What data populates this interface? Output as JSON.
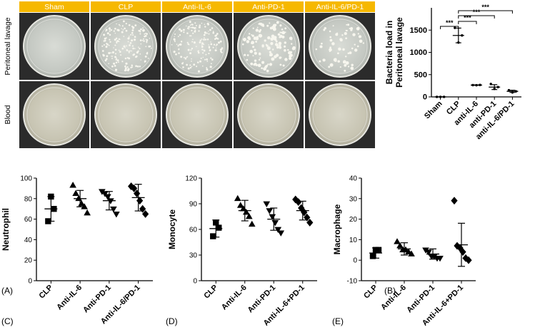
{
  "panel_labels": [
    "(A)",
    "(B)",
    "(C)",
    "(D)",
    "(E)"
  ],
  "plates": {
    "groups": [
      "Sham",
      "CLP",
      "Anti-IL-6",
      "Anti-PD-1",
      "Anti-IL-6/PD-1"
    ],
    "rows": [
      "Peritoneal lavage",
      "Blood"
    ],
    "header_color": "#F6B800",
    "colony_density": [
      0,
      1.0,
      0.9,
      0.7,
      0.35
    ]
  },
  "chart_data": [
    {
      "panel": "(B)",
      "type": "scatter",
      "ylabel": "Bacteria load in\nPeritoneal lavage",
      "categories": [
        "Sham",
        "CLP",
        "anti-IL-6",
        "anti-PD-1",
        "anti-IL-6/PD-1"
      ],
      "ylim": [
        0,
        2000
      ],
      "yticks": [
        0,
        500,
        1000,
        1500
      ],
      "points": [
        [
          0,
          0,
          0
        ],
        [
          1550,
          1220,
          1380
        ],
        [
          265,
          262,
          268
        ],
        [
          290,
          180,
          220
        ],
        [
          150,
          100,
          125
        ]
      ],
      "mean": [
        0,
        1380,
        265,
        220,
        125
      ],
      "sd": [
        0,
        165,
        5,
        55,
        25
      ],
      "marker": "point",
      "significance": [
        {
          "from": "Sham",
          "to": "CLP",
          "label": "***"
        },
        {
          "from": "CLP",
          "to": "anti-IL-6",
          "label": "***"
        },
        {
          "from": "CLP",
          "to": "anti-PD-1",
          "label": "***"
        },
        {
          "from": "CLP",
          "to": "anti-IL-6/PD-1",
          "label": "***"
        }
      ]
    },
    {
      "panel": "(C)",
      "type": "scatter",
      "ylabel": "Neutrophil",
      "categories": [
        "CLP",
        "Anti-IL-6",
        "Anti-PD-1",
        "Anti-IL-6/PD-1"
      ],
      "markers": [
        "square",
        "triangle-up",
        "triangle-down",
        "diamond"
      ],
      "ylim": [
        0,
        100
      ],
      "yticks": [
        0,
        20,
        40,
        60,
        80,
        100
      ],
      "points": [
        [
          58,
          82,
          70
        ],
        [
          93,
          85,
          80,
          75,
          72,
          66
        ],
        [
          87,
          85,
          82,
          78,
          70,
          65
        ],
        [
          92,
          90,
          85,
          78,
          70,
          65
        ]
      ],
      "mean": [
        70,
        80,
        78,
        81
      ],
      "sd": [
        12,
        8,
        9,
        13
      ]
    },
    {
      "panel": "(D)",
      "type": "scatter",
      "ylabel": "Monocyte",
      "categories": [
        "CLP",
        "Anti-IL-6",
        "Anti-PD-1",
        "Anti-IL-6+PD-1"
      ],
      "markers": [
        "square",
        "triangle-up",
        "triangle-down",
        "diamond"
      ],
      "ylim": [
        0,
        120
      ],
      "yticks": [
        0,
        30,
        60,
        90,
        120
      ],
      "points": [
        [
          52,
          68,
          62
        ],
        [
          96,
          88,
          84,
          80,
          75,
          66
        ],
        [
          90,
          82,
          75,
          68,
          60,
          56
        ],
        [
          95,
          92,
          85,
          80,
          74,
          68
        ]
      ],
      "mean": [
        61,
        82,
        72,
        82
      ],
      "sd": [
        10,
        12,
        13,
        11
      ]
    },
    {
      "panel": "(E)",
      "type": "scatter",
      "ylabel": "Macrophage",
      "categories": [
        "CLP",
        "Anti-IL-6",
        "Anti-PD-1",
        "Anti-IL-6+PD-1"
      ],
      "markers": [
        "square",
        "triangle-up",
        "triangle-down",
        "diamond"
      ],
      "ylim": [
        -10,
        40
      ],
      "yticks": [
        -10,
        0,
        10,
        20,
        30,
        40
      ],
      "points": [
        [
          2,
          5,
          5
        ],
        [
          9,
          7,
          5,
          5,
          4,
          3
        ],
        [
          5,
          4,
          2,
          2,
          1,
          1
        ],
        [
          29,
          7,
          6,
          4,
          1,
          0
        ]
      ],
      "mean": [
        3.5,
        5.5,
        3,
        7.5
      ],
      "sd": [
        2.5,
        3,
        2.5,
        10.5
      ]
    }
  ]
}
